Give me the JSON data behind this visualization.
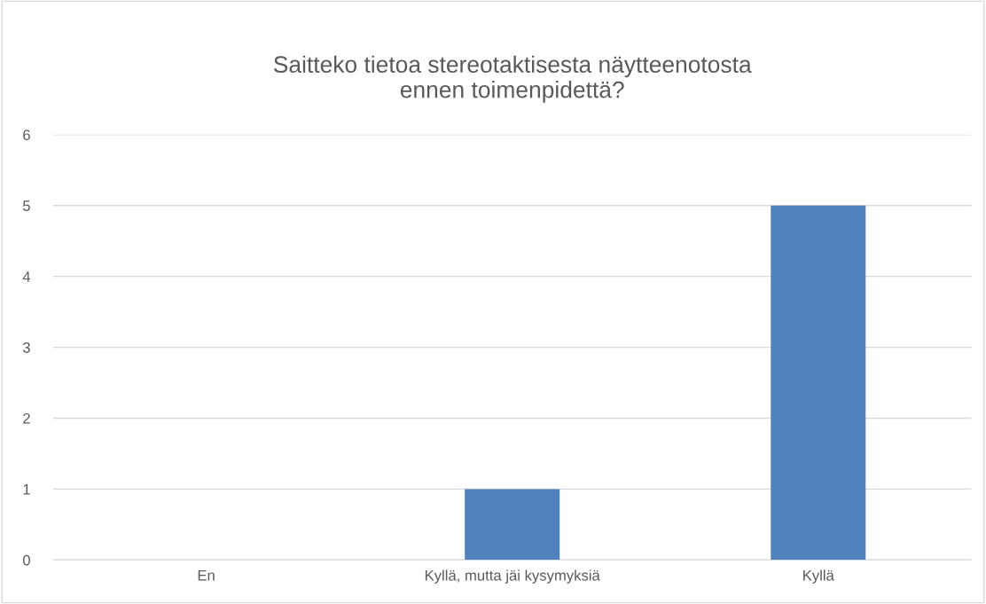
{
  "chart_data": {
    "type": "bar",
    "title": "Saitteko tietoa stereotaktisesta näytteenotosta\nennen toimenpidettä?",
    "categories": [
      "En",
      "Kyllä, mutta jäi kysymyksiä",
      "Kyllä"
    ],
    "values": [
      0,
      1,
      5
    ],
    "color": "#4f81bd",
    "ylim": [
      0,
      6
    ],
    "yticks": [
      0,
      1,
      2,
      3,
      4,
      5,
      6
    ],
    "grid": "y"
  }
}
